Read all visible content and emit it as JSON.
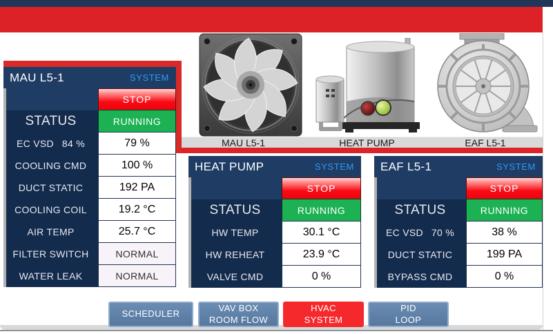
{
  "colors": {
    "top_navy": "#22365a",
    "top_red": "#dd2227",
    "panel_header_navy": "#1e3c64",
    "panel_body_navy": "#132b4c",
    "system_blue": "#2f9bf3",
    "running_green": "#1cb254",
    "stop_red": "#f90a14",
    "nav_button_blue": "#5b80aa",
    "nav_button_active_red": "#f5282b"
  },
  "equipment_labels": [
    "MAU L5-1",
    "HEAT PUMP",
    "EAF L5-1"
  ],
  "equipment_images": [
    "axial-fan-image",
    "heat-pump-image",
    "inline-exhaust-fan-image"
  ],
  "panels": [
    {
      "title": "MAU L5-1",
      "system_label": "SYSTEM",
      "stop_label": "STOP",
      "rows": [
        {
          "label": "STATUS",
          "value": "RUNNING",
          "type": "status"
        },
        {
          "label": "EC VSD",
          "label2": "84 %",
          "value": "79 %",
          "type": "value"
        },
        {
          "label": "COOLING CMD",
          "value": "100 %",
          "type": "value"
        },
        {
          "label": "DUCT STATIC",
          "value": "192 PA",
          "type": "value"
        },
        {
          "label": "COOLING COIL",
          "value": "19.2 °C",
          "type": "value"
        },
        {
          "label": "AIR TEMP",
          "value": "25.7 °C",
          "type": "value"
        },
        {
          "label": "FILTER SWITCH",
          "value": "NORMAL",
          "type": "normal"
        },
        {
          "label": "WATER LEAK",
          "value": "NORMAL",
          "type": "normal"
        }
      ]
    },
    {
      "title": "HEAT PUMP",
      "system_label": "SYSTEM",
      "stop_label": "STOP",
      "rows": [
        {
          "label": "STATUS",
          "value": "RUNNING",
          "type": "status"
        },
        {
          "label": "HW TEMP",
          "value": "30.1 °C",
          "type": "value"
        },
        {
          "label": "HW REHEAT",
          "value": "23.9 °C",
          "type": "value"
        },
        {
          "label": "VALVE CMD",
          "value": "0 %",
          "type": "value"
        }
      ]
    },
    {
      "title": "EAF L5-1",
      "system_label": "SYSTEM",
      "stop_label": "STOP",
      "rows": [
        {
          "label": "STATUS",
          "value": "RUNNING",
          "type": "status"
        },
        {
          "label": "EC VSD",
          "label2": "70 %",
          "value": "38 %",
          "type": "value"
        },
        {
          "label": "DUCT STATIC",
          "value": "199 PA",
          "type": "value"
        },
        {
          "label": "BYPASS CMD",
          "value": "0 %",
          "type": "value"
        }
      ]
    }
  ],
  "nav_buttons": [
    {
      "line1": "SCHEDULER",
      "line2": "",
      "active": false
    },
    {
      "line1": "VAV BOX",
      "line2": "ROOM FLOW",
      "active": false
    },
    {
      "line1": "HVAC",
      "line2": "SYSTEM",
      "active": true
    },
    {
      "line1": "PID",
      "line2": "LOOP",
      "active": false
    }
  ]
}
